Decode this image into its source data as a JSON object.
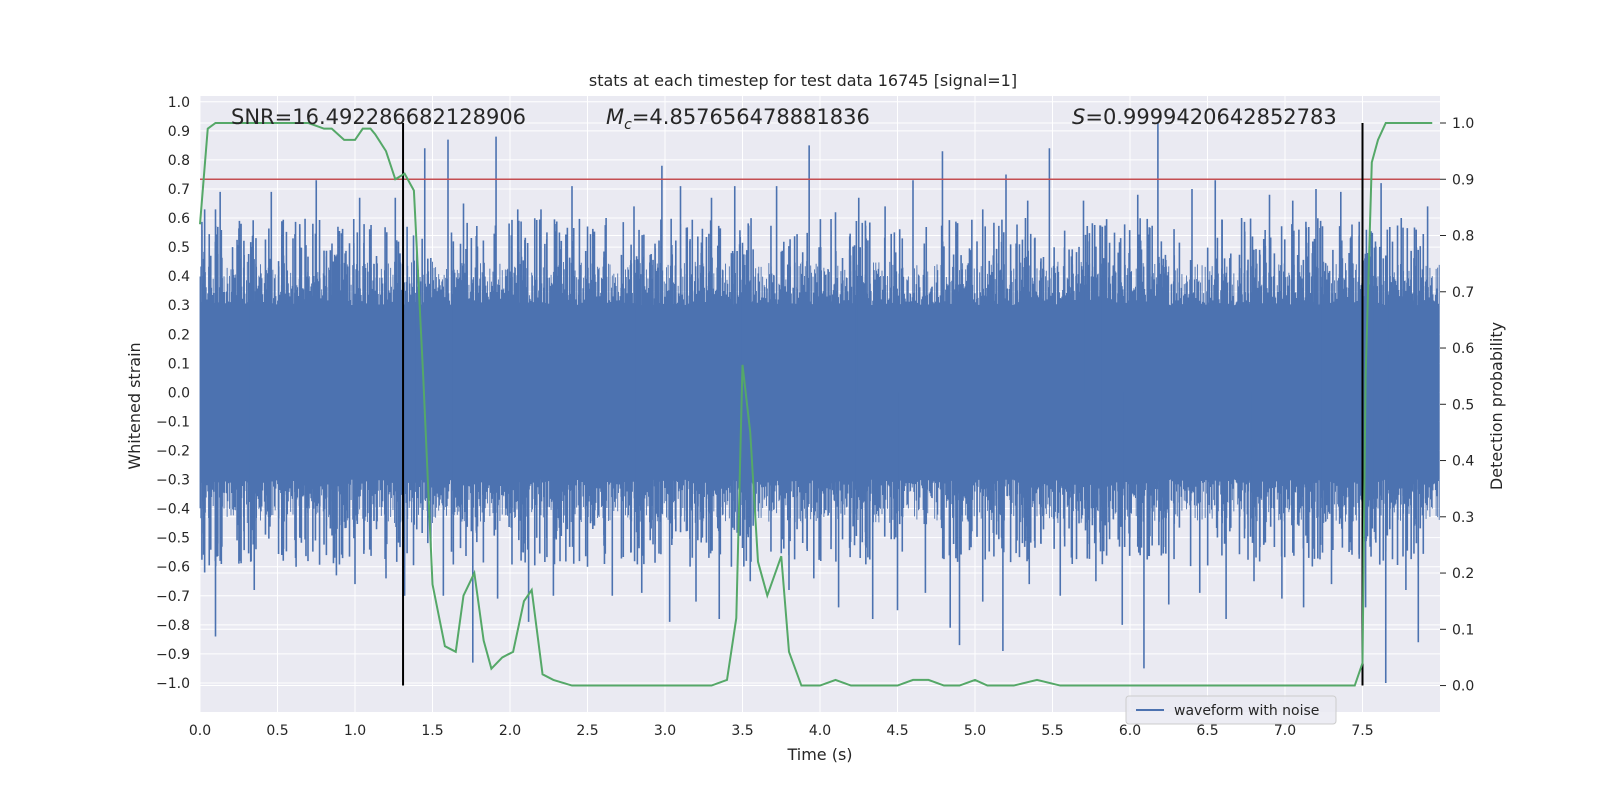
{
  "chart_data": {
    "type": "line",
    "title": "stats at each timestep for test data 16745 [signal=1]",
    "xlabel": "Time (s)",
    "ylabel": "Whitened strain",
    "y2label": "Detection probability",
    "xlim": [
      0.0,
      8.0
    ],
    "ylim": [
      -1.1,
      1.02
    ],
    "y2lim": [
      -0.047,
      1.048
    ],
    "xticks": [
      0.0,
      0.5,
      1.0,
      1.5,
      2.0,
      2.5,
      3.0,
      3.5,
      4.0,
      4.5,
      5.0,
      5.5,
      6.0,
      6.5,
      7.0,
      7.5
    ],
    "xtick_labels": [
      "0.0",
      "0.5",
      "1.0",
      "1.5",
      "2.0",
      "2.5",
      "3.0",
      "3.5",
      "4.0",
      "4.5",
      "5.0",
      "5.5",
      "6.0",
      "6.5",
      "7.0",
      "7.5"
    ],
    "yticks": [
      1.0,
      0.9,
      0.8,
      0.7,
      0.6,
      0.5,
      0.4,
      0.3,
      0.2,
      0.1,
      0.0,
      -0.1,
      -0.2,
      -0.3,
      -0.4,
      -0.5,
      -0.6,
      -0.7,
      -0.8,
      -0.9,
      -1.0
    ],
    "ytick_labels": [
      "1.0",
      "0.9",
      "0.8",
      "0.7",
      "0.6",
      "0.5",
      "0.4",
      "0.3",
      "0.2",
      "0.1",
      "0.0",
      "−0.1",
      "−0.2",
      "−0.3",
      "−0.4",
      "−0.5",
      "−0.6",
      "−0.7",
      "−0.8",
      "−0.9",
      "−1.0"
    ],
    "y2ticks": [
      1.0,
      0.9,
      0.8,
      0.7,
      0.6,
      0.5,
      0.4,
      0.3,
      0.2,
      0.1,
      0.0
    ],
    "y2tick_labels": [
      "1.0",
      "0.9",
      "0.8",
      "0.7",
      "0.6",
      "0.5",
      "0.4",
      "0.3",
      "0.2",
      "0.1",
      "0.0"
    ],
    "grid": true,
    "legend": {
      "position": "lower-right",
      "entries": [
        "waveform with noise"
      ]
    },
    "annotations": {
      "snr": "SNR=16.492286682128906",
      "mc_symbol": "M",
      "mc_sub": "c",
      "mc_value": "=4.857656478881836",
      "s_symbol": "S",
      "s_value": "=0.9999420642852783"
    },
    "threshold": {
      "axis": "y2",
      "value": 0.9,
      "color": "#c44e52"
    },
    "vlines": [
      1.31,
      7.5
    ],
    "waveform": {
      "name": "waveform with noise",
      "color": "#4c72b0",
      "core_amplitude": 0.3,
      "samples": 1600,
      "spikes_up": [
        {
          "t": 0.03,
          "v": 0.63
        },
        {
          "t": 0.1,
          "v": 0.63
        },
        {
          "t": 0.13,
          "v": 0.69
        },
        {
          "t": 0.21,
          "v": 0.5
        },
        {
          "t": 0.26,
          "v": 0.46
        },
        {
          "t": 0.33,
          "v": 0.5
        },
        {
          "t": 0.46,
          "v": 0.69
        },
        {
          "t": 0.6,
          "v": 0.53
        },
        {
          "t": 0.75,
          "v": 0.73
        },
        {
          "t": 0.89,
          "v": 0.57
        },
        {
          "t": 1.03,
          "v": 0.67
        },
        {
          "t": 1.26,
          "v": 0.67
        },
        {
          "t": 1.45,
          "v": 0.84
        },
        {
          "t": 1.6,
          "v": 0.87
        },
        {
          "t": 1.7,
          "v": 0.65
        },
        {
          "t": 1.91,
          "v": 0.88
        },
        {
          "t": 2.05,
          "v": 0.63
        },
        {
          "t": 2.2,
          "v": 0.63
        },
        {
          "t": 2.4,
          "v": 0.71
        },
        {
          "t": 2.62,
          "v": 0.6
        },
        {
          "t": 2.8,
          "v": 0.64
        },
        {
          "t": 2.98,
          "v": 0.78
        },
        {
          "t": 3.1,
          "v": 0.71
        },
        {
          "t": 3.3,
          "v": 0.67
        },
        {
          "t": 3.45,
          "v": 0.71
        },
        {
          "t": 3.72,
          "v": 0.71
        },
        {
          "t": 3.93,
          "v": 0.85
        },
        {
          "t": 4.1,
          "v": 0.62
        },
        {
          "t": 4.25,
          "v": 0.67
        },
        {
          "t": 4.42,
          "v": 0.64
        },
        {
          "t": 4.6,
          "v": 0.73
        },
        {
          "t": 4.79,
          "v": 0.83
        },
        {
          "t": 5.05,
          "v": 0.63
        },
        {
          "t": 5.2,
          "v": 0.75
        },
        {
          "t": 5.34,
          "v": 0.66
        },
        {
          "t": 5.48,
          "v": 0.84
        },
        {
          "t": 5.7,
          "v": 0.66
        },
        {
          "t": 5.9,
          "v": 0.55
        },
        {
          "t": 6.05,
          "v": 0.68
        },
        {
          "t": 6.18,
          "v": 0.93
        },
        {
          "t": 6.4,
          "v": 0.7
        },
        {
          "t": 6.55,
          "v": 0.73
        },
        {
          "t": 6.72,
          "v": 0.6
        },
        {
          "t": 6.9,
          "v": 0.68
        },
        {
          "t": 7.05,
          "v": 0.66
        },
        {
          "t": 7.2,
          "v": 0.7
        },
        {
          "t": 7.36,
          "v": 0.69
        },
        {
          "t": 7.62,
          "v": 0.72
        },
        {
          "t": 7.75,
          "v": 0.6
        },
        {
          "t": 7.92,
          "v": 0.64
        }
      ],
      "spikes_down": [
        {
          "t": 0.03,
          "v": -0.62
        },
        {
          "t": 0.1,
          "v": -0.84
        },
        {
          "t": 0.13,
          "v": -0.58
        },
        {
          "t": 0.35,
          "v": -0.68
        },
        {
          "t": 0.62,
          "v": -0.6
        },
        {
          "t": 0.88,
          "v": -0.63
        },
        {
          "t": 1.0,
          "v": -0.66
        },
        {
          "t": 1.2,
          "v": -0.64
        },
        {
          "t": 1.32,
          "v": -0.7
        },
        {
          "t": 1.57,
          "v": -0.7
        },
        {
          "t": 1.76,
          "v": -0.93
        },
        {
          "t": 1.92,
          "v": -0.71
        },
        {
          "t": 2.12,
          "v": -0.79
        },
        {
          "t": 2.28,
          "v": -0.7
        },
        {
          "t": 2.5,
          "v": -0.6
        },
        {
          "t": 2.66,
          "v": -0.7
        },
        {
          "t": 2.85,
          "v": -0.69
        },
        {
          "t": 3.03,
          "v": -0.79
        },
        {
          "t": 3.2,
          "v": -0.72
        },
        {
          "t": 3.35,
          "v": -0.78
        },
        {
          "t": 3.55,
          "v": -0.65
        },
        {
          "t": 3.8,
          "v": -0.68
        },
        {
          "t": 3.96,
          "v": -0.64
        },
        {
          "t": 4.12,
          "v": -0.74
        },
        {
          "t": 4.34,
          "v": -0.78
        },
        {
          "t": 4.5,
          "v": -0.75
        },
        {
          "t": 4.68,
          "v": -0.69
        },
        {
          "t": 4.84,
          "v": -0.81
        },
        {
          "t": 4.9,
          "v": -0.87
        },
        {
          "t": 5.05,
          "v": -0.72
        },
        {
          "t": 5.18,
          "v": -0.89
        },
        {
          "t": 5.35,
          "v": -0.66
        },
        {
          "t": 5.55,
          "v": -0.7
        },
        {
          "t": 5.78,
          "v": -0.65
        },
        {
          "t": 5.95,
          "v": -0.8
        },
        {
          "t": 6.09,
          "v": -0.95
        },
        {
          "t": 6.25,
          "v": -0.73
        },
        {
          "t": 6.45,
          "v": -0.69
        },
        {
          "t": 6.62,
          "v": -0.78
        },
        {
          "t": 6.8,
          "v": -0.65
        },
        {
          "t": 6.98,
          "v": -0.71
        },
        {
          "t": 7.12,
          "v": -0.74
        },
        {
          "t": 7.3,
          "v": -0.66
        },
        {
          "t": 7.52,
          "v": -0.74
        },
        {
          "t": 7.65,
          "v": -1.0
        },
        {
          "t": 7.78,
          "v": -0.68
        },
        {
          "t": 7.86,
          "v": -0.86
        }
      ]
    },
    "probability": {
      "name": "detection probability",
      "color": "#55a868",
      "x": [
        0.0,
        0.05,
        0.1,
        0.2,
        0.3,
        0.4,
        0.5,
        0.6,
        0.7,
        0.8,
        0.85,
        0.93,
        1.0,
        1.05,
        1.1,
        1.13,
        1.2,
        1.26,
        1.32,
        1.38,
        1.44,
        1.5,
        1.58,
        1.65,
        1.7,
        1.77,
        1.83,
        1.88,
        1.95,
        2.02,
        2.09,
        2.14,
        2.21,
        2.28,
        2.4,
        2.55,
        2.7,
        2.85,
        3.0,
        3.15,
        3.3,
        3.4,
        3.46,
        3.5,
        3.55,
        3.6,
        3.66,
        3.75,
        3.8,
        3.88,
        4.0,
        4.1,
        4.2,
        4.35,
        4.5,
        4.6,
        4.7,
        4.8,
        4.9,
        5.0,
        5.08,
        5.15,
        5.25,
        5.4,
        5.55,
        5.7,
        5.85,
        6.0,
        6.2,
        6.4,
        6.6,
        6.8,
        6.95,
        7.1,
        7.2,
        7.35,
        7.45,
        7.5,
        7.52,
        7.56,
        7.6,
        7.65,
        7.72,
        7.85,
        7.95
      ],
      "y": [
        0.82,
        0.99,
        1.0,
        1.0,
        1.0,
        1.0,
        1.0,
        1.0,
        1.0,
        0.99,
        0.99,
        0.97,
        0.97,
        0.99,
        0.99,
        0.98,
        0.95,
        0.9,
        0.91,
        0.88,
        0.55,
        0.18,
        0.07,
        0.06,
        0.16,
        0.2,
        0.08,
        0.03,
        0.05,
        0.06,
        0.15,
        0.17,
        0.02,
        0.01,
        0.0,
        0.0,
        0.0,
        0.0,
        0.0,
        0.0,
        0.0,
        0.01,
        0.12,
        0.57,
        0.45,
        0.22,
        0.16,
        0.23,
        0.06,
        0.0,
        0.0,
        0.01,
        0.0,
        0.0,
        0.0,
        0.01,
        0.01,
        0.0,
        0.0,
        0.01,
        0.0,
        0.0,
        0.0,
        0.01,
        0.0,
        0.0,
        0.0,
        0.0,
        0.0,
        0.0,
        0.0,
        0.0,
        0.0,
        0.0,
        0.0,
        0.0,
        0.0,
        0.04,
        0.55,
        0.93,
        0.97,
        1.0,
        1.0,
        1.0,
        1.0
      ]
    }
  }
}
